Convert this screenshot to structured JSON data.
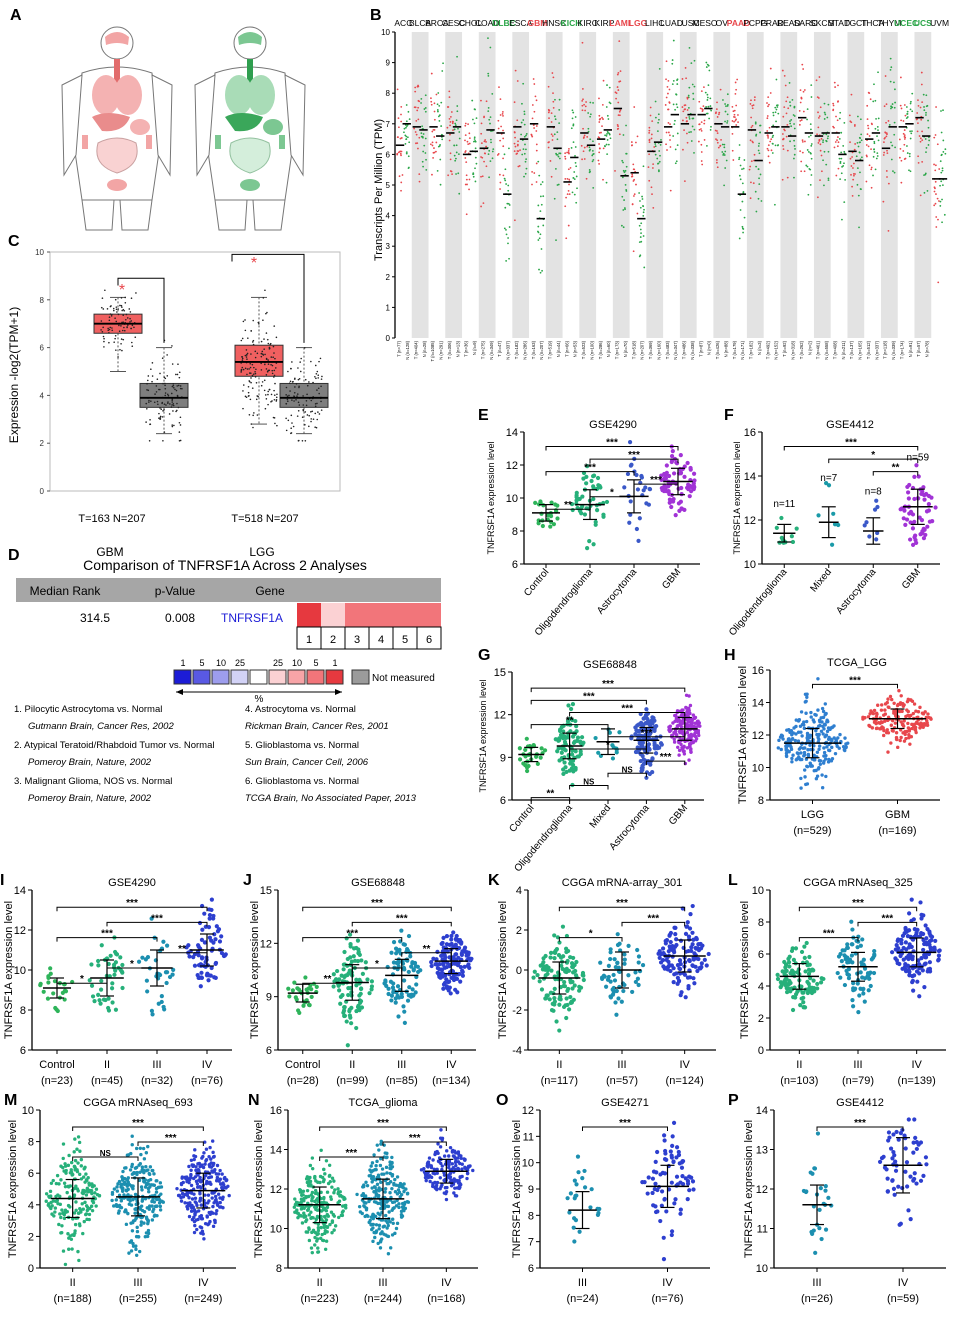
{
  "panel_letters": [
    "A",
    "B",
    "C",
    "D",
    "E",
    "F",
    "G",
    "H",
    "I",
    "J",
    "K",
    "L",
    "M",
    "N",
    "O",
    "P"
  ],
  "colors": {
    "tumor": "#e8474c",
    "normal": "#2aa648",
    "box_t": "#f06060",
    "box_n": "#7f7f7f",
    "over1": "#e6393f",
    "over5": "#f2757a",
    "over10": "#f7a4a7",
    "over25": "#fbd1d3",
    "under1": "#1c1cd6",
    "under5": "#5959e3",
    "under10": "#9d9ded",
    "under25": "#d2d2f6",
    "notmeas": "#9b9b9b"
  },
  "panel_b": {
    "ylabel": "Transcripts Per Million (TPM)",
    "yticks": [
      "0",
      "1",
      "2",
      "3",
      "4",
      "5",
      "6",
      "7",
      "8",
      "9",
      "10"
    ],
    "cancers": [
      "ACC",
      "BLCA",
      "BRCA",
      "CESC",
      "CHOL",
      "COAD",
      "DLBC",
      "ESCA",
      "GBM",
      "HNSC",
      "KICH",
      "KIRC",
      "KIRP",
      "LAML",
      "LGG",
      "LIHC",
      "LUAD",
      "LUSC",
      "MESO",
      "OV",
      "PAAD",
      "PCPG",
      "PRAD",
      "READ",
      "SARC",
      "SKCM",
      "STAD",
      "TGCT",
      "THCA",
      "THYM",
      "UCEC",
      "UCS",
      "UVM"
    ],
    "highlight_red": [
      "GBM",
      "LAML",
      "LGG",
      "PAAD"
    ],
    "highlight_green": [
      "DLBC",
      "KICH",
      "UCEC",
      "UCS"
    ],
    "medians_t": [
      6.3,
      6.9,
      6.9,
      6.7,
      6.0,
      6.2,
      6.7,
      6.9,
      7.0,
      6.9,
      5.1,
      6.7,
      6.5,
      7.5,
      5.4,
      6.1,
      6.9,
      7.0,
      7.3,
      7.0,
      6.9,
      6.8,
      6.7,
      6.9,
      7.2,
      6.6,
      6.7,
      6.1,
      6.5,
      6.2,
      6.9,
      7.2,
      5.2
    ],
    "medians_n": [
      7.0,
      6.8,
      6.6,
      6.9,
      6.1,
      6.8,
      4.7,
      6.5,
      3.9,
      6.2,
      5.9,
      6.3,
      6.8,
      5.3,
      3.9,
      6.4,
      7.3,
      7.3,
      7.5,
      6.9,
      4.7,
      5.8,
      6.9,
      6.6,
      6.7,
      6.7,
      6.0,
      5.8,
      6.7,
      6.9,
      7.0,
      6.6,
      5.2
    ],
    "xlabels": [
      "T (n=77)",
      "N (n=128)",
      "T (n=404)",
      "N (n=28)",
      "T (n=1085)",
      "N (n=291)",
      "T (n=306)",
      "N (n=13)",
      "T (n=36)",
      "N (n=9)",
      "T (n=275)",
      "N (n=349)",
      "T (n=47)",
      "N (n=337)",
      "T (n=182)",
      "N (n=286)",
      "T (n=163)",
      "N (n=207)",
      "T (n=519)",
      "N (n=44)",
      "T (n=66)",
      "N (n=53)",
      "T (n=523)",
      "N (n=100)",
      "T (n=286)",
      "N (n=60)",
      "T (n=173)",
      "N (n=70)",
      "T (n=518)",
      "N (n=207)",
      "T (n=369)",
      "N (n=160)",
      "T (n=483)",
      "N (n=347)",
      "T (n=486)",
      "N (n=338)",
      "T (n=87)",
      "N (n=0)",
      "T (n=426)",
      "N (n=88)",
      "T (n=179)",
      "N (n=171)",
      "T (n=182)",
      "N (n=3)",
      "T (n=492)",
      "N (n=152)",
      "T (n=92)",
      "N (n=318)",
      "T (n=262)",
      "N (n=2)",
      "T (n=461)",
      "N (n=558)",
      "T (n=408)",
      "N (n=211)",
      "T (n=137)",
      "N (n=165)",
      "T (n=512)",
      "N (n=337)",
      "T (n=118)",
      "N (n=339)",
      "T (n=174)",
      "N (n=91)",
      "T (n=57)",
      "N (n=78)"
    ]
  },
  "panel_c": {
    "ylabel": "Expression -log2(TPM+1)",
    "yticks": [
      "0",
      "2",
      "4",
      "6",
      "8",
      "10"
    ],
    "groups": [
      "GBM",
      "LGG"
    ],
    "counts": [
      "T=163   N=207",
      "T=518   N=207"
    ],
    "star": "*"
  },
  "panel_d": {
    "title": "Comparison of TNFRSF1A Across 2 Analyses",
    "headers": [
      "Median Rank",
      "p-Value",
      "Gene"
    ],
    "median_rank": "314.5",
    "p_value": "0.008",
    "gene": "TNFRSF1A",
    "cell_numbers": [
      "1",
      "2",
      "3",
      "4",
      "5",
      "6"
    ],
    "legend_numbers": [
      "1",
      "5",
      "10",
      "25",
      "25",
      "10",
      "5",
      "1"
    ],
    "percent": "%",
    "not_measured": "Not measured",
    "analyses": [
      {
        "title": "1. Pilocytic Astrocytoma vs. Normal",
        "ref": "Gutmann Brain, Cancer Res, 2002"
      },
      {
        "title": "2. Atypical Teratoid/Rhabdoid Tumor vs. Normal",
        "ref": "Pomeroy Brain, Nature, 2002"
      },
      {
        "title": "3. Malignant Glioma, NOS vs. Normal",
        "ref": "Pomeroy Brain, Nature, 2002"
      },
      {
        "title": "4. Astrocytoma vs. Normal",
        "ref": "Rickman Brain, Cancer Res, 2001"
      },
      {
        "title": "5. Glioblastoma vs. Normal",
        "ref": "Sun Brain, Cancer Cell, 2006"
      },
      {
        "title": "6. Glioblastoma vs. Normal",
        "ref": "TCGA Brain, No Associated Paper, 2013"
      }
    ]
  },
  "ylabel_expr": "TNFRSF1A expression level",
  "panels": {
    "E": {
      "title": "GSE4290",
      "yticks": [
        "6",
        "8",
        "10",
        "12",
        "14"
      ],
      "ymin": 6,
      "ymax": 14,
      "xlabels": [
        "Control",
        "Oligodendroglioma",
        "Astrocytoma",
        "GBM"
      ],
      "rot": true,
      "means": [
        9.1,
        9.6,
        10.1,
        11.0
      ],
      "sds": [
        0.5,
        0.9,
        1.0,
        0.8
      ],
      "n": [
        23,
        50,
        26,
        81
      ],
      "colors": [
        "#2eb45a",
        "#26b07a",
        "#3a58c8",
        "#a133d6"
      ],
      "sig": [
        {
          "a": 0,
          "b": 1,
          "t": "**"
        },
        {
          "a": 1,
          "b": 2,
          "t": "*"
        },
        {
          "a": 2,
          "b": 3,
          "t": "***"
        },
        {
          "a": 0,
          "b": 2,
          "t": "***"
        },
        {
          "a": 1,
          "b": 3,
          "t": "***"
        },
        {
          "a": 0,
          "b": 3,
          "t": "***"
        }
      ]
    },
    "F": {
      "title": "GSE4412",
      "yticks": [
        "10",
        "12",
        "14",
        "16"
      ],
      "ymin": 10,
      "ymax": 16,
      "xlabels": [
        "Oligodendroglioma",
        "Mixed",
        "Astrocytoma",
        "GBM"
      ],
      "rot": true,
      "means": [
        11.4,
        11.9,
        11.5,
        12.6
      ],
      "sds": [
        0.4,
        0.7,
        0.6,
        0.8
      ],
      "n": [
        11,
        7,
        8,
        59
      ],
      "ntext": [
        "n=11",
        "n=7",
        "n=8",
        "n=59"
      ],
      "colors": [
        "#26b07a",
        "#1a9aa8",
        "#3a58c8",
        "#a133d6"
      ],
      "sig": [
        {
          "a": 2,
          "b": 3,
          "t": "**"
        },
        {
          "a": 1,
          "b": 3,
          "t": "*"
        },
        {
          "a": 0,
          "b": 3,
          "t": "***"
        }
      ]
    },
    "G": {
      "title": "GSE68848",
      "yticks": [
        "6",
        "9",
        "12",
        "15"
      ],
      "ymin": 6,
      "ymax": 15,
      "xlabels": [
        "Control",
        "Oligodendroglioma",
        "Mixed",
        "Astrocytoma",
        "GBM"
      ],
      "rot": true,
      "means": [
        9.2,
        9.8,
        10.1,
        10.2,
        11.0
      ],
      "sds": [
        0.5,
        0.9,
        0.9,
        0.9,
        0.8
      ],
      "n": [
        28,
        90,
        12,
        120,
        190
      ],
      "colors": [
        "#2eb45a",
        "#26b07a",
        "#1a9aa8",
        "#3a58c8",
        "#a133d6"
      ],
      "sig": [
        {
          "a": 0,
          "b": 1,
          "t": "**"
        },
        {
          "a": 1,
          "b": 2,
          "t": "NS"
        },
        {
          "a": 2,
          "b": 3,
          "t": "NS"
        },
        {
          "a": 3,
          "b": 4,
          "t": "***"
        },
        {
          "a": 1,
          "b": 3,
          "t": "*"
        },
        {
          "a": 2,
          "b": 4,
          "t": "***"
        },
        {
          "a": 0,
          "b": 2,
          "t": "**"
        },
        {
          "a": 1,
          "b": 4,
          "t": "***"
        },
        {
          "a": 0,
          "b": 3,
          "t": "***"
        },
        {
          "a": 0,
          "b": 4,
          "t": "***"
        }
      ]
    },
    "H": {
      "title": "TCGA_LGG",
      "yticks": [
        "8",
        "10",
        "12",
        "14",
        "16"
      ],
      "ymin": 8,
      "ymax": 16,
      "xlabels": [
        "LGG",
        "GBM"
      ],
      "ns": [
        "(n=529)",
        "(n=169)"
      ],
      "rot": false,
      "means": [
        11.5,
        13.0
      ],
      "sds": [
        0.9,
        0.6
      ],
      "n": [
        529,
        169
      ],
      "colors": [
        "#2f7fd0",
        "#e8474c"
      ],
      "sig": [
        {
          "a": 0,
          "b": 1,
          "t": "***"
        }
      ]
    },
    "I": {
      "title": "GSE4290",
      "yticks": [
        "6",
        "8",
        "10",
        "12",
        "14"
      ],
      "ymin": 6,
      "ymax": 14,
      "xlabels": [
        "Control",
        "II",
        "III",
        "IV"
      ],
      "ns": [
        "(n=23)",
        "(n=45)",
        "(n=32)",
        "(n=76)"
      ],
      "rot": false,
      "means": [
        9.1,
        9.6,
        10.1,
        11.0
      ],
      "sds": [
        0.5,
        0.9,
        0.9,
        0.8
      ],
      "n": [
        23,
        45,
        32,
        76
      ],
      "colors": [
        "#2eb45a",
        "#26b07a",
        "#1c8fb0",
        "#2d3fcf"
      ],
      "sig": [
        {
          "a": 0,
          "b": 1,
          "t": "*"
        },
        {
          "a": 1,
          "b": 2,
          "t": "*"
        },
        {
          "a": 2,
          "b": 3,
          "t": "**"
        },
        {
          "a": 0,
          "b": 2,
          "t": "***"
        },
        {
          "a": 1,
          "b": 3,
          "t": "***"
        },
        {
          "a": 0,
          "b": 3,
          "t": "***"
        }
      ]
    },
    "J": {
      "title": "GSE68848",
      "yticks": [
        "6",
        "9",
        "12",
        "15"
      ],
      "ymin": 6,
      "ymax": 15,
      "xlabels": [
        "Control",
        "II",
        "III",
        "IV"
      ],
      "ns": [
        "(n=28)",
        "(n=99)",
        "(n=85)",
        "(n=134)"
      ],
      "rot": false,
      "means": [
        9.2,
        9.8,
        10.2,
        11.0
      ],
      "sds": [
        0.5,
        1.0,
        0.9,
        0.7
      ],
      "n": [
        28,
        99,
        85,
        134
      ],
      "colors": [
        "#2eb45a",
        "#26b07a",
        "#1c8fb0",
        "#2d3fcf"
      ],
      "sig": [
        {
          "a": 0,
          "b": 1,
          "t": "**"
        },
        {
          "a": 1,
          "b": 2,
          "t": "*"
        },
        {
          "a": 2,
          "b": 3,
          "t": "**"
        },
        {
          "a": 0,
          "b": 2,
          "t": "***"
        },
        {
          "a": 1,
          "b": 3,
          "t": "***"
        },
        {
          "a": 0,
          "b": 3,
          "t": "***"
        }
      ]
    },
    "K": {
      "title": "CGGA mRNA-array_301",
      "yticks": [
        "-4",
        "-2",
        "0",
        "2",
        "4"
      ],
      "ymin": -4,
      "ymax": 4,
      "xlabels": [
        "II",
        "III",
        "IV"
      ],
      "ns": [
        "(n=117)",
        "(n=57)",
        "(n=124)"
      ],
      "rot": false,
      "means": [
        -0.4,
        0.0,
        0.7
      ],
      "sds": [
        0.8,
        0.9,
        0.8
      ],
      "n": [
        117,
        57,
        124
      ],
      "colors": [
        "#26b07a",
        "#1c8fb0",
        "#2d3fcf"
      ],
      "sig": [
        {
          "a": 0,
          "b": 1,
          "t": "*"
        },
        {
          "a": 1,
          "b": 2,
          "t": "***"
        },
        {
          "a": 0,
          "b": 2,
          "t": "***"
        }
      ]
    },
    "L": {
      "title": "CGGA mRNAseq_325",
      "yticks": [
        "0",
        "2",
        "4",
        "6",
        "8",
        "10"
      ],
      "ymin": 0,
      "ymax": 10,
      "xlabels": [
        "II",
        "III",
        "IV"
      ],
      "ns": [
        "(n=103)",
        "(n=79)",
        "(n=139)"
      ],
      "rot": false,
      "means": [
        4.6,
        5.2,
        6.1
      ],
      "sds": [
        0.8,
        0.9,
        0.9
      ],
      "n": [
        103,
        79,
        139
      ],
      "colors": [
        "#26b07a",
        "#1c8fb0",
        "#2d3fcf"
      ],
      "sig": [
        {
          "a": 0,
          "b": 1,
          "t": "***"
        },
        {
          "a": 1,
          "b": 2,
          "t": "***"
        },
        {
          "a": 0,
          "b": 2,
          "t": "***"
        }
      ]
    },
    "M": {
      "title": "CGGA mRNAseq_693",
      "yticks": [
        "0",
        "2",
        "4",
        "6",
        "8",
        "10"
      ],
      "ymin": 0,
      "ymax": 10,
      "xlabels": [
        "II",
        "III",
        "IV"
      ],
      "ns": [
        "(n=188)",
        "(n=255)",
        "(n=249)"
      ],
      "rot": false,
      "means": [
        4.4,
        4.5,
        4.9
      ],
      "sds": [
        1.2,
        1.2,
        1.1
      ],
      "n": [
        188,
        255,
        249
      ],
      "colors": [
        "#26b07a",
        "#1c8fb0",
        "#2d3fcf"
      ],
      "sig": [
        {
          "a": 0,
          "b": 1,
          "t": "NS"
        },
        {
          "a": 1,
          "b": 2,
          "t": "***"
        },
        {
          "a": 0,
          "b": 2,
          "t": "***"
        }
      ]
    },
    "N": {
      "title": "TCGA_glioma",
      "yticks": [
        "8",
        "10",
        "12",
        "14",
        "16"
      ],
      "ymin": 8,
      "ymax": 16,
      "xlabels": [
        "II",
        "III",
        "IV"
      ],
      "ns": [
        "(n=223)",
        "(n=244)",
        "(n=168)"
      ],
      "rot": false,
      "means": [
        11.2,
        11.5,
        12.9
      ],
      "sds": [
        0.9,
        1.0,
        0.6
      ],
      "n": [
        223,
        244,
        168
      ],
      "colors": [
        "#26b07a",
        "#1c8fb0",
        "#2d3fcf"
      ],
      "sig": [
        {
          "a": 0,
          "b": 1,
          "t": "***"
        },
        {
          "a": 1,
          "b": 2,
          "t": "***"
        },
        {
          "a": 0,
          "b": 2,
          "t": "***"
        }
      ]
    },
    "O": {
      "title": "GSE4271",
      "yticks": [
        "6",
        "7",
        "8",
        "9",
        "10",
        "11",
        "12"
      ],
      "ymin": 6,
      "ymax": 12,
      "xlabels": [
        "III",
        "IV"
      ],
      "ns": [
        "(n=24)",
        "(n=76)"
      ],
      "rot": false,
      "means": [
        8.2,
        9.1
      ],
      "sds": [
        0.7,
        0.8
      ],
      "n": [
        24,
        76
      ],
      "colors": [
        "#1c8fb0",
        "#2d3fcf"
      ],
      "sig": [
        {
          "a": 0,
          "b": 1,
          "t": "***"
        }
      ]
    },
    "P": {
      "title": "GSE4412",
      "yticks": [
        "10",
        "11",
        "12",
        "13",
        "14"
      ],
      "ymin": 10,
      "ymax": 14,
      "xlabels": [
        "III",
        "IV"
      ],
      "ns": [
        "(n=26)",
        "(n=59)"
      ],
      "rot": false,
      "means": [
        11.6,
        12.6
      ],
      "sds": [
        0.5,
        0.7
      ],
      "n": [
        26,
        59
      ],
      "colors": [
        "#1c8fb0",
        "#2d3fcf"
      ],
      "sig": [
        {
          "a": 0,
          "b": 1,
          "t": "***"
        }
      ]
    }
  }
}
